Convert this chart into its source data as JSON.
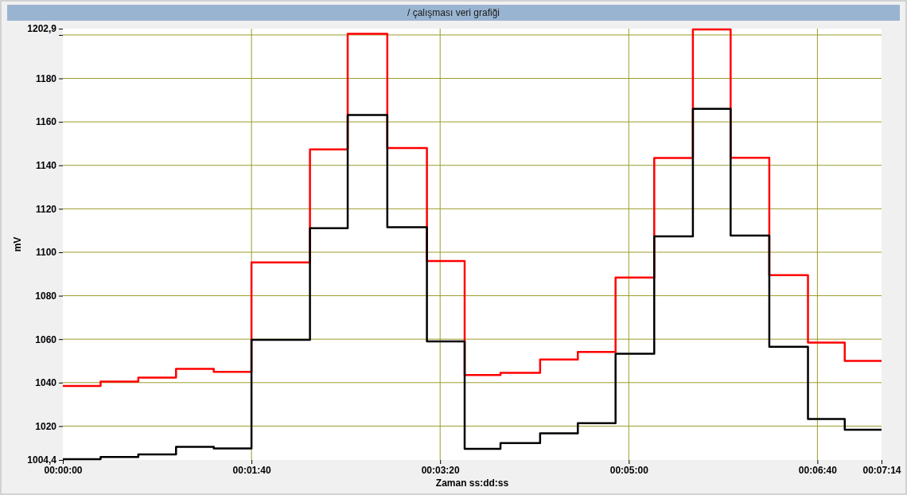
{
  "chart_data": {
    "type": "step",
    "title": "/  çalışması veri grafiği",
    "xlabel": "Zaman ss:dd:ss",
    "ylabel": "mV",
    "x": [
      0,
      20,
      40,
      60,
      80,
      100,
      131,
      151,
      172,
      193,
      213,
      232,
      253,
      273,
      293,
      313.5,
      334,
      354,
      374.5,
      395,
      414.5,
      434
    ],
    "series": [
      {
        "color": "#ff0000",
        "values": [
          1038.5,
          1040.5,
          1042.3,
          1046.3,
          1045,
          1095.3,
          1147.3,
          1200.5,
          1148,
          1096,
          1043.5,
          1044.5,
          1050.6,
          1054.1,
          1088.4,
          1143.4,
          1202.5,
          1143.5,
          1089.5,
          1058.4,
          1050,
          1050
        ]
      },
      {
        "color": "#000000",
        "values": [
          1004.8,
          1005.8,
          1007,
          1010.4,
          1009.7,
          1059.7,
          1111.1,
          1163.2,
          1111.5,
          1059,
          1009.5,
          1012.2,
          1016.7,
          1021.3,
          1053.3,
          1107.3,
          1166,
          1107.7,
          1056.5,
          1023.3,
          1018.3,
          1018.3
        ]
      }
    ],
    "xlim": [
      0,
      434
    ],
    "ylim": [
      1004.4,
      1202.9
    ],
    "xticks": [
      {
        "value": 0,
        "label": "00:00:00"
      },
      {
        "value": 100,
        "label": "00:01:40"
      },
      {
        "value": 200,
        "label": "00:03:20"
      },
      {
        "value": 300,
        "label": "00:05:00"
      },
      {
        "value": 400,
        "label": "00:06:40"
      },
      {
        "value": 434,
        "label": "00:07:14"
      }
    ],
    "yticks": [
      {
        "value": 1004.4,
        "label": "1004,4"
      },
      1020,
      1040,
      1060,
      1080,
      1100,
      1120,
      1140,
      1160,
      1180,
      {
        "value": 1200,
        "label": null
      },
      {
        "value": 1202.9,
        "label": "1202,9"
      }
    ],
    "grid": true,
    "line_style": "solid",
    "marker": "none"
  }
}
